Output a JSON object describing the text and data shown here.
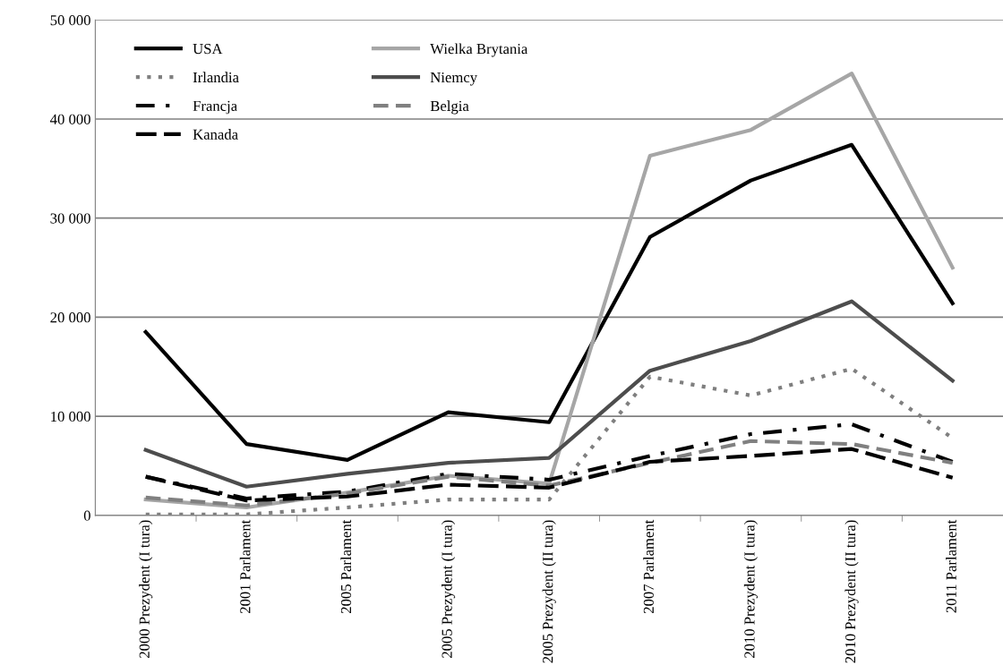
{
  "chart_data": {
    "type": "line",
    "categories": [
      "2000 Prezydent (I tura)",
      "2001 Parlament",
      "2005 Parlament",
      "2005 Prezydent (I tura)",
      "2005 Prezydent (II tura)",
      "2007 Parlament",
      "2010 Prezydent (I tura)",
      "2010 Prezydent (II tura)",
      "2011 Parlament"
    ],
    "series": [
      {
        "name": "USA",
        "color": "#000000",
        "line_style": "solid",
        "values": [
          18500,
          7200,
          5600,
          10400,
          9400,
          28100,
          33800,
          37400,
          21400
        ]
      },
      {
        "name": "Wielka Brytania",
        "color": "#a6a6a6",
        "line_style": "solid",
        "values": [
          1600,
          800,
          2300,
          4000,
          3200,
          36300,
          38900,
          44600,
          25000
        ]
      },
      {
        "name": "Irlandia",
        "color": "#7f7f7f",
        "line_style": "dotted",
        "values": [
          100,
          100,
          800,
          1600,
          1600,
          14000,
          12100,
          14800,
          7800
        ]
      },
      {
        "name": "Niemcy",
        "color": "#4d4d4d",
        "line_style": "solid",
        "values": [
          6600,
          2900,
          4200,
          5300,
          5800,
          14600,
          17600,
          21600,
          13600
        ]
      },
      {
        "name": "Francja",
        "color": "#000000",
        "line_style": "dashdot",
        "values": [
          3900,
          1700,
          2400,
          4200,
          3600,
          6000,
          8200,
          9200,
          5400
        ]
      },
      {
        "name": "Belgia",
        "color": "#808080",
        "line_style": "dashed",
        "values": [
          1800,
          1000,
          2200,
          3900,
          3000,
          5300,
          7500,
          7200,
          5300
        ]
      },
      {
        "name": "Kanada",
        "color": "#000000",
        "line_style": "longdash",
        "values": [
          3900,
          1500,
          1900,
          3100,
          2800,
          5400,
          6000,
          6700,
          3800
        ]
      }
    ],
    "ylim": [
      0,
      50000
    ],
    "yticks": [
      {
        "value": 0,
        "label": "0"
      },
      {
        "value": 10000,
        "label": "10 000"
      },
      {
        "value": 20000,
        "label": "20 000"
      },
      {
        "value": 30000,
        "label": "30 000"
      },
      {
        "value": 40000,
        "label": "40 000"
      },
      {
        "value": 50000,
        "label": "50 000"
      }
    ],
    "grid": "y",
    "legend": "top left",
    "marker": "none"
  }
}
